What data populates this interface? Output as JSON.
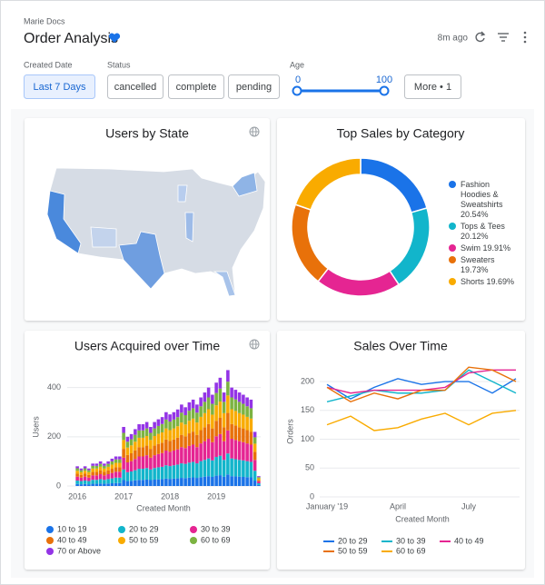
{
  "header": {
    "breadcrumb": "Marie Docs",
    "title": "Order Analysis",
    "updated": "8m ago"
  },
  "filters": {
    "created_date": {
      "label": "Created Date",
      "value": "Last 7 Days"
    },
    "status": {
      "label": "Status",
      "options": [
        "cancelled",
        "complete",
        "pending"
      ]
    },
    "age": {
      "label": "Age",
      "min": 0,
      "max": 100
    },
    "more": "More • 1"
  },
  "chart_data": [
    {
      "type": "map",
      "title": "Users by State"
    },
    {
      "type": "donut",
      "title": "Top Sales by Category",
      "categories": [
        "Fashion Hoodies & Sweatshirts",
        "Tops & Tees",
        "Swim",
        "Sweaters",
        "Shorts"
      ],
      "values": [
        20.54,
        20.12,
        19.91,
        19.73,
        19.69
      ],
      "value_labels": [
        "20.54%",
        "20.12%",
        "19.91%",
        "19.73%",
        "19.69%"
      ],
      "colors": [
        "#1a73e8",
        "#12b5cb",
        "#e52592",
        "#e8710a",
        "#f9ab00"
      ],
      "legend": "right"
    },
    {
      "type": "stacked_bar",
      "title": "Users Acquired over Time",
      "x_label": "Created Month",
      "y_label": "Users",
      "categories": [
        "2016",
        null,
        null,
        null,
        null,
        null,
        null,
        null,
        null,
        null,
        null,
        null,
        "2017",
        null,
        null,
        null,
        null,
        null,
        null,
        null,
        null,
        null,
        null,
        null,
        "2018",
        null,
        null,
        null,
        null,
        null,
        null,
        null,
        null,
        null,
        null,
        null,
        "2019",
        null,
        null,
        null,
        null,
        null,
        null,
        null,
        null,
        null,
        null,
        null
      ],
      "series": [
        {
          "name": "10 to 19",
          "color": "#1a73e8",
          "values": [
            8,
            7,
            8,
            7,
            9,
            9,
            10,
            9,
            10,
            11,
            12,
            12,
            24,
            20,
            21,
            23,
            25,
            25,
            26,
            24,
            26,
            27,
            28,
            30,
            29,
            30,
            31,
            33,
            32,
            34,
            35,
            33,
            36,
            38,
            40,
            37,
            42,
            44,
            38,
            47,
            40,
            39,
            38,
            37,
            36,
            35,
            22,
            4
          ]
        },
        {
          "name": "20 to 29",
          "color": "#12b5cb",
          "values": [
            14,
            13,
            14,
            13,
            16,
            16,
            18,
            16,
            18,
            20,
            22,
            22,
            43,
            36,
            38,
            41,
            45,
            45,
            47,
            43,
            47,
            49,
            50,
            54,
            52,
            54,
            56,
            59,
            58,
            61,
            63,
            59,
            65,
            68,
            72,
            67,
            76,
            79,
            68,
            85,
            72,
            70,
            68,
            67,
            65,
            63,
            40,
            7
          ]
        },
        {
          "name": "30 to 39",
          "color": "#e52592",
          "values": [
            16,
            14,
            16,
            14,
            18,
            18,
            20,
            18,
            20,
            22,
            24,
            24,
            48,
            40,
            42,
            46,
            50,
            50,
            52,
            48,
            52,
            54,
            56,
            60,
            58,
            60,
            62,
            66,
            64,
            68,
            70,
            66,
            72,
            76,
            80,
            74,
            84,
            88,
            76,
            94,
            80,
            78,
            76,
            74,
            72,
            70,
            44,
            8
          ]
        },
        {
          "name": "40 to 49",
          "color": "#e8710a",
          "values": [
            12,
            11,
            12,
            11,
            14,
            14,
            15,
            14,
            15,
            17,
            18,
            18,
            36,
            30,
            32,
            35,
            38,
            38,
            39,
            36,
            39,
            41,
            42,
            45,
            44,
            45,
            47,
            50,
            48,
            51,
            53,
            50,
            54,
            57,
            60,
            56,
            63,
            66,
            57,
            71,
            60,
            59,
            57,
            56,
            54,
            53,
            33,
            6
          ]
        },
        {
          "name": "50 to 59",
          "color": "#f9ab00",
          "values": [
            12,
            11,
            12,
            11,
            14,
            14,
            15,
            14,
            15,
            17,
            18,
            18,
            36,
            30,
            32,
            35,
            38,
            38,
            39,
            36,
            39,
            41,
            42,
            45,
            44,
            45,
            47,
            50,
            48,
            51,
            53,
            50,
            54,
            57,
            60,
            56,
            63,
            66,
            57,
            71,
            60,
            59,
            57,
            56,
            54,
            53,
            33,
            6
          ]
        },
        {
          "name": "60 to 69",
          "color": "#7cb342",
          "values": [
            10,
            8,
            10,
            8,
            11,
            11,
            12,
            11,
            12,
            13,
            14,
            14,
            29,
            24,
            25,
            28,
            30,
            30,
            31,
            29,
            31,
            32,
            34,
            36,
            35,
            36,
            37,
            40,
            38,
            41,
            42,
            40,
            43,
            46,
            48,
            44,
            50,
            53,
            46,
            56,
            48,
            47,
            46,
            44,
            43,
            42,
            26,
            5
          ]
        },
        {
          "name": "70 or Above",
          "color": "#9334e6",
          "values": [
            8,
            7,
            8,
            7,
            9,
            9,
            10,
            9,
            10,
            11,
            12,
            12,
            24,
            20,
            21,
            23,
            25,
            25,
            26,
            24,
            26,
            27,
            28,
            30,
            29,
            30,
            31,
            33,
            32,
            34,
            35,
            33,
            36,
            38,
            40,
            37,
            42,
            44,
            38,
            47,
            40,
            39,
            38,
            37,
            36,
            35,
            22,
            4
          ]
        }
      ],
      "ylim": [
        0,
        480
      ],
      "yticks": [
        0,
        200,
        400
      ],
      "grid": true,
      "legend": "bottom"
    },
    {
      "type": "line",
      "title": "Sales Over Time",
      "x_label": "Created Month",
      "y_label": "Orders",
      "categories": [
        "January '19",
        null,
        null,
        "April",
        null,
        null,
        "July",
        null,
        null
      ],
      "series": [
        {
          "name": "20 to 29",
          "color": "#1a73e8",
          "values": [
            195,
            170,
            190,
            205,
            195,
            200,
            200,
            180,
            205
          ]
        },
        {
          "name": "30 to 39",
          "color": "#12b5cb",
          "values": [
            165,
            175,
            185,
            180,
            180,
            185,
            220,
            200,
            180
          ]
        },
        {
          "name": "40 to 49",
          "color": "#e52592",
          "values": [
            190,
            180,
            185,
            185,
            185,
            190,
            215,
            220,
            220
          ]
        },
        {
          "name": "50 to 59",
          "color": "#e8710a",
          "values": [
            190,
            165,
            180,
            170,
            185,
            185,
            225,
            220,
            200
          ]
        },
        {
          "name": "60 to 69",
          "color": "#f9ab00",
          "values": [
            125,
            140,
            115,
            120,
            135,
            145,
            125,
            145,
            150
          ]
        }
      ],
      "ylim": [
        0,
        230
      ],
      "yticks": [
        0,
        50,
        100,
        150,
        200
      ],
      "grid": true,
      "legend": "bottom"
    }
  ]
}
